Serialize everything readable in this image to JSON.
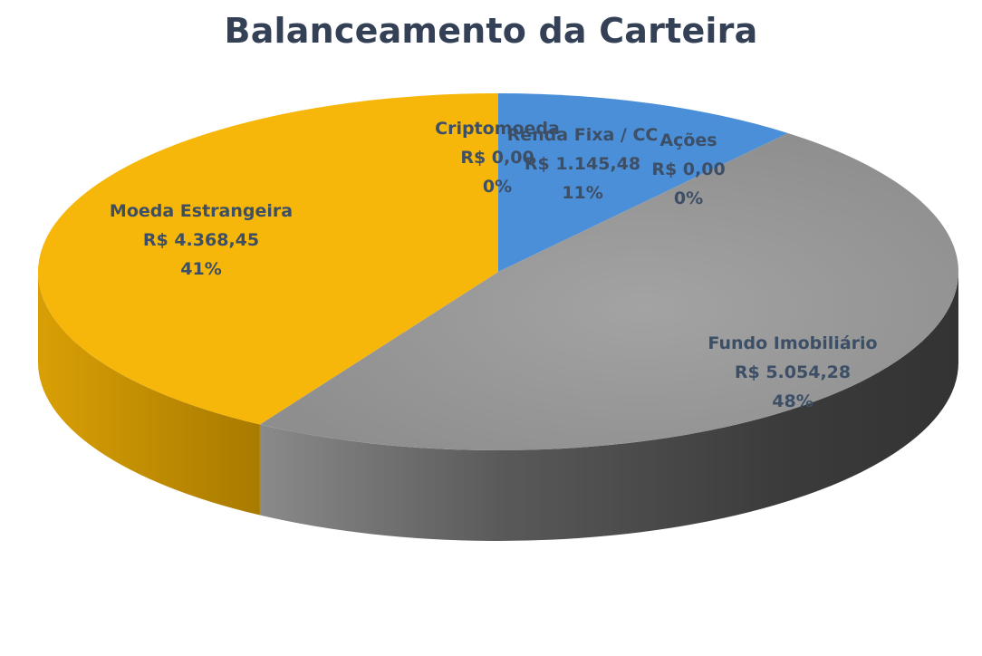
{
  "chart_data": {
    "type": "pie",
    "title": "Balanceamento da Carteira",
    "three_d": true,
    "slices": [
      {
        "name": "Renda Fixa / CC",
        "value_label": "R$ 1.145,48",
        "percent_label": "11%",
        "value": 1145.48,
        "color": "#4a8fd8"
      },
      {
        "name": "Ações",
        "value_label": "R$ 0,00",
        "percent_label": "0%",
        "value": 0.0,
        "color": "#7a7a7a"
      },
      {
        "name": "Fundo Imobiliário",
        "value_label": "R$ 5.054,28",
        "percent_label": "48%",
        "value": 5054.28,
        "color": "#9a9a9a"
      },
      {
        "name": "Moeda Estrangeira",
        "value_label": "R$ 4.368,45",
        "percent_label": "41%",
        "value": 4368.45,
        "color": "#f6b60a"
      },
      {
        "name": "Criptomoeda",
        "value_label": "R$ 0,00",
        "percent_label": "0%",
        "value": 0.0,
        "color": "#d98c1a"
      }
    ]
  }
}
